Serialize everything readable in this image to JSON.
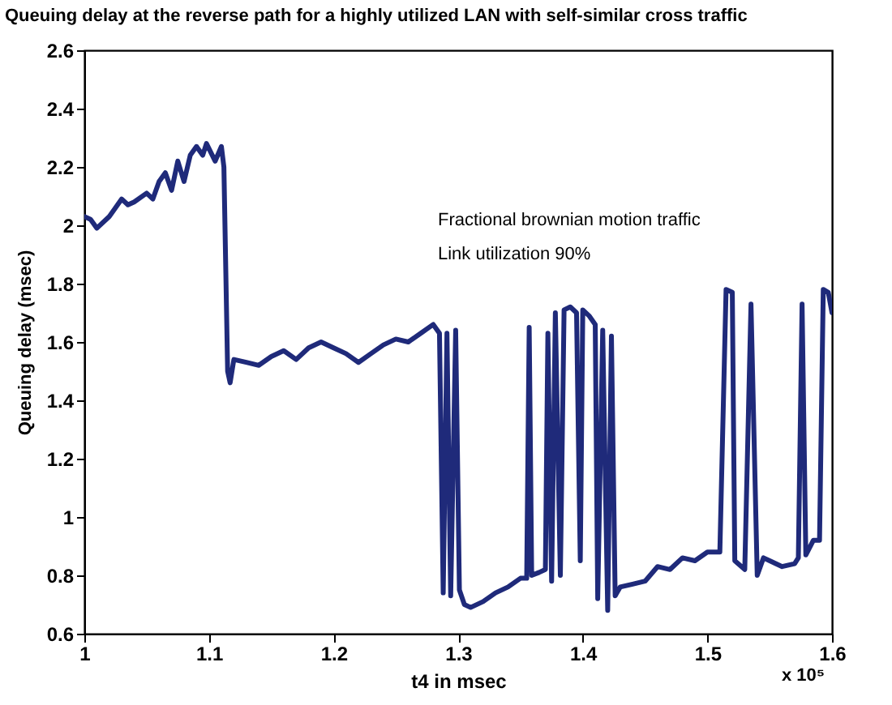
{
  "chart_data": {
    "type": "line",
    "title": "Queuing delay  at the reverse path for a highly utilized LAN with self-similar cross traffic",
    "xlabel": "t4 in msec",
    "ylabel": "Queuing delay (msec)",
    "annotations": [
      "Fractional brownian motion traffic",
      "Link utilization 90%",
      "x 10⁵"
    ],
    "xlim": [
      1,
      1.6
    ],
    "xticks": [
      1,
      1.1,
      1.2,
      1.3,
      1.4,
      1.5,
      1.6
    ],
    "ylim": [
      0.6,
      2.6
    ],
    "yticks": [
      0.6,
      0.8,
      1,
      1.2,
      1.4,
      1.6,
      1.8,
      2,
      2.2,
      2.4,
      2.6
    ],
    "grid": false,
    "marker": "none",
    "line_style": "solid",
    "series": [
      {
        "color": "#1f2a7a",
        "x": [
          1.0,
          1.005,
          1.01,
          1.02,
          1.03,
          1.035,
          1.04,
          1.05,
          1.055,
          1.06,
          1.065,
          1.07,
          1.075,
          1.08,
          1.085,
          1.09,
          1.095,
          1.098,
          1.105,
          1.11,
          1.112,
          1.115,
          1.117,
          1.12,
          1.13,
          1.14,
          1.15,
          1.16,
          1.17,
          1.18,
          1.19,
          1.2,
          1.21,
          1.22,
          1.23,
          1.24,
          1.25,
          1.26,
          1.27,
          1.28,
          1.285,
          1.288,
          1.291,
          1.294,
          1.298,
          1.301,
          1.305,
          1.31,
          1.32,
          1.33,
          1.34,
          1.35,
          1.355,
          1.357,
          1.359,
          1.365,
          1.37,
          1.372,
          1.375,
          1.378,
          1.382,
          1.385,
          1.39,
          1.395,
          1.398,
          1.4,
          1.405,
          1.41,
          1.412,
          1.416,
          1.42,
          1.423,
          1.426,
          1.43,
          1.44,
          1.45,
          1.46,
          1.47,
          1.48,
          1.49,
          1.5,
          1.51,
          1.515,
          1.52,
          1.522,
          1.53,
          1.535,
          1.54,
          1.545,
          1.55,
          1.56,
          1.57,
          1.573,
          1.576,
          1.579,
          1.585,
          1.59,
          1.593,
          1.597,
          1.6
        ],
        "values": [
          2.03,
          2.02,
          1.99,
          2.03,
          2.09,
          2.07,
          2.08,
          2.11,
          2.09,
          2.15,
          2.18,
          2.12,
          2.22,
          2.15,
          2.24,
          2.27,
          2.24,
          2.28,
          2.22,
          2.27,
          2.2,
          1.5,
          1.46,
          1.54,
          1.53,
          1.52,
          1.55,
          1.57,
          1.54,
          1.58,
          1.6,
          1.58,
          1.56,
          1.53,
          1.56,
          1.59,
          1.61,
          1.6,
          1.63,
          1.66,
          1.63,
          0.74,
          1.63,
          0.73,
          1.64,
          0.75,
          0.7,
          0.69,
          0.71,
          0.74,
          0.76,
          0.79,
          0.79,
          1.65,
          0.8,
          0.81,
          0.82,
          1.63,
          0.78,
          1.7,
          0.8,
          1.71,
          1.72,
          1.7,
          0.85,
          1.71,
          1.69,
          1.66,
          0.72,
          1.64,
          0.68,
          1.62,
          0.73,
          0.76,
          0.77,
          0.78,
          0.83,
          0.82,
          0.86,
          0.85,
          0.88,
          0.88,
          1.78,
          1.77,
          0.85,
          0.82,
          1.73,
          0.8,
          0.86,
          0.85,
          0.83,
          0.84,
          0.86,
          1.73,
          0.87,
          0.92,
          0.92,
          1.78,
          1.77,
          1.7
        ]
      }
    ]
  }
}
